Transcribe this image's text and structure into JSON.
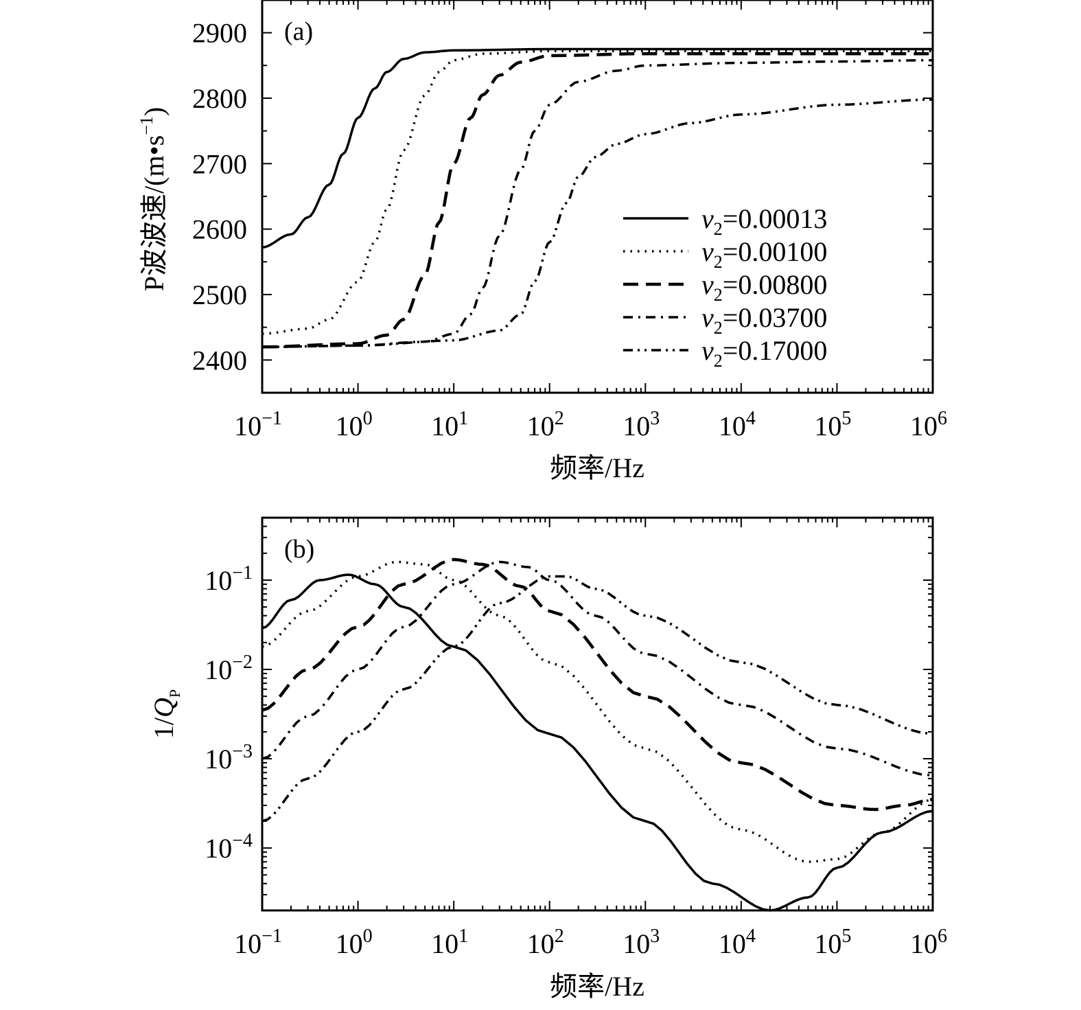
{
  "chart_data": [
    {
      "type": "line",
      "panel_label": "(a)",
      "xlabel": "频率/Hz",
      "ylabel": "P波波速/(m•s",
      "ylabel_sup": "−1",
      "ylabel_close": ")",
      "xscale": "log",
      "xlim": [
        0.1,
        1000000
      ],
      "ylim": [
        2350,
        2950
      ],
      "x_ticks": [
        {
          "base": "10",
          "exp": "−1"
        },
        {
          "base": "10",
          "exp": "0"
        },
        {
          "base": "10",
          "exp": "1"
        },
        {
          "base": "10",
          "exp": "2"
        },
        {
          "base": "10",
          "exp": "3"
        },
        {
          "base": "10",
          "exp": "4"
        },
        {
          "base": "10",
          "exp": "5"
        },
        {
          "base": "10",
          "exp": "6"
        }
      ],
      "y_ticks": [
        "2400",
        "2500",
        "2600",
        "2700",
        "2800",
        "2900"
      ],
      "grid": false,
      "legend_position": "lower-right",
      "legend_prefix": "v",
      "legend_sub": "2",
      "legend_eq": "=",
      "series": [
        {
          "name": "0.00013",
          "style": "solid",
          "x": [
            0.1,
            0.2,
            0.3,
            0.5,
            0.7,
            1,
            1.5,
            2,
            3,
            5,
            10,
            100,
            1000,
            10000,
            100000,
            1000000
          ],
          "y": [
            2572,
            2592,
            2618,
            2668,
            2715,
            2770,
            2815,
            2840,
            2860,
            2870,
            2873,
            2875,
            2875,
            2875,
            2875,
            2875
          ]
        },
        {
          "name": "0.00100",
          "style": "dotted",
          "x": [
            0.1,
            0.3,
            0.5,
            1,
            1.5,
            2,
            3,
            5,
            7,
            10,
            20,
            100,
            1000,
            10000,
            100000,
            1000000
          ],
          "y": [
            2440,
            2448,
            2462,
            2520,
            2580,
            2630,
            2720,
            2805,
            2840,
            2858,
            2868,
            2872,
            2872,
            2872,
            2872,
            2872
          ]
        },
        {
          "name": "0.00800",
          "style": "dashed",
          "x": [
            0.1,
            1,
            2,
            3,
            5,
            7,
            10,
            15,
            20,
            30,
            50,
            100,
            1000,
            10000,
            100000,
            1000000
          ],
          "y": [
            2420,
            2425,
            2438,
            2462,
            2530,
            2610,
            2700,
            2770,
            2805,
            2835,
            2855,
            2865,
            2868,
            2868,
            2868,
            2868
          ]
        },
        {
          "name": "0.03700",
          "style": "dashdot",
          "x": [
            0.1,
            1,
            5,
            10,
            15,
            20,
            30,
            50,
            70,
            100,
            200,
            500,
            1000,
            10000,
            100000,
            1000000
          ],
          "y": [
            2420,
            2422,
            2428,
            2440,
            2470,
            2510,
            2590,
            2690,
            2750,
            2790,
            2825,
            2842,
            2850,
            2854,
            2856,
            2858
          ]
        },
        {
          "name": "0.17000",
          "style": "dashdotdot",
          "x": [
            0.1,
            1,
            10,
            30,
            50,
            70,
            100,
            150,
            200,
            300,
            500,
            1000,
            3000,
            10000,
            100000,
            1000000
          ],
          "y": [
            2420,
            2422,
            2430,
            2445,
            2470,
            2520,
            2580,
            2640,
            2680,
            2710,
            2730,
            2745,
            2762,
            2775,
            2790,
            2798
          ]
        }
      ]
    },
    {
      "type": "line",
      "panel_label": "(b)",
      "xlabel": "频率/Hz",
      "ylabel": "1/",
      "ylabel_italic": "Q",
      "ylabel_sub": "P",
      "xscale": "log",
      "yscale": "log",
      "xlim": [
        0.1,
        1000000
      ],
      "ylim": [
        2e-05,
        0.5
      ],
      "x_ticks": [
        {
          "base": "10",
          "exp": "−1"
        },
        {
          "base": "10",
          "exp": "0"
        },
        {
          "base": "10",
          "exp": "1"
        },
        {
          "base": "10",
          "exp": "2"
        },
        {
          "base": "10",
          "exp": "3"
        },
        {
          "base": "10",
          "exp": "4"
        },
        {
          "base": "10",
          "exp": "5"
        },
        {
          "base": "10",
          "exp": "6"
        }
      ],
      "y_ticks": [
        {
          "base": "10",
          "exp": "−4"
        },
        {
          "base": "10",
          "exp": "−3"
        },
        {
          "base": "10",
          "exp": "−2"
        },
        {
          "base": "10",
          "exp": "−1"
        }
      ],
      "grid": false,
      "series": [
        {
          "name": "0.00013",
          "style": "solid",
          "x": [
            0.1,
            0.2,
            0.4,
            0.8,
            1.5,
            3,
            10,
            100,
            1000,
            5000,
            20000,
            50000,
            100000,
            300000,
            1000000
          ],
          "y": [
            0.029,
            0.06,
            0.1,
            0.115,
            0.09,
            0.05,
            0.018,
            0.0019,
            0.0002,
            4e-05,
            2e-05,
            2.8e-05,
            6e-05,
            0.00015,
            0.00026
          ]
        },
        {
          "name": "0.00100",
          "style": "dotted",
          "x": [
            0.1,
            0.3,
            1,
            2.5,
            5,
            10,
            30,
            100,
            1000,
            10000,
            50000,
            100000,
            300000,
            1000000
          ],
          "y": [
            0.018,
            0.045,
            0.11,
            0.16,
            0.15,
            0.1,
            0.04,
            0.012,
            0.0013,
            0.00016,
            7e-05,
            7.5e-05,
            0.00015,
            0.00035
          ]
        },
        {
          "name": "0.00800",
          "style": "dashed",
          "x": [
            0.1,
            0.3,
            1,
            3,
            10,
            20,
            50,
            100,
            1000,
            10000,
            100000,
            250000,
            500000,
            1000000
          ],
          "y": [
            0.0035,
            0.01,
            0.03,
            0.09,
            0.17,
            0.15,
            0.085,
            0.045,
            0.005,
            0.0009,
            0.0003,
            0.00027,
            0.0003,
            0.00035
          ]
        },
        {
          "name": "0.03700",
          "style": "dashdot",
          "x": [
            0.1,
            0.3,
            1,
            3,
            10,
            30,
            60,
            100,
            300,
            1000,
            10000,
            100000,
            1000000
          ],
          "y": [
            0.001,
            0.003,
            0.01,
            0.03,
            0.09,
            0.16,
            0.14,
            0.1,
            0.04,
            0.015,
            0.004,
            0.0013,
            0.00065
          ]
        },
        {
          "name": "0.17000",
          "style": "dashdotdot",
          "x": [
            0.1,
            0.3,
            1,
            3,
            10,
            30,
            100,
            150,
            300,
            1000,
            10000,
            100000,
            1000000
          ],
          "y": [
            0.0002,
            0.0006,
            0.002,
            0.006,
            0.018,
            0.055,
            0.11,
            0.11,
            0.08,
            0.04,
            0.012,
            0.004,
            0.0019
          ]
        }
      ]
    }
  ]
}
